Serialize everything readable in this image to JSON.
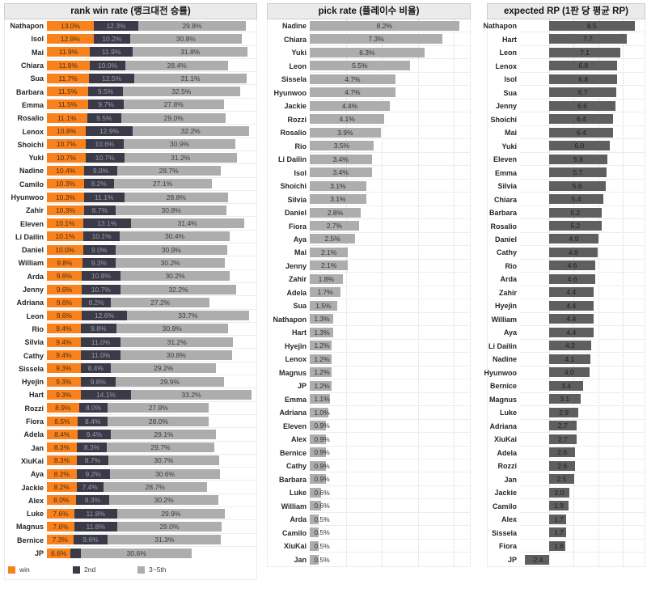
{
  "chart_data": [
    {
      "type": "bar",
      "orientation": "horizontal",
      "stacked": true,
      "title": "rank win rate (랭크대전 승률)",
      "xlim": [
        0,
        58
      ],
      "grid": false,
      "legend_position": "bottom",
      "series": [
        {
          "name": "win",
          "color": "#F9821D"
        },
        {
          "name": "2nd",
          "color": "#3B3A49"
        },
        {
          "name": "3~5th",
          "color": "#ADADAD"
        }
      ],
      "rows": [
        {
          "name": "Nathapon",
          "values": [
            13.0,
            12.3,
            29.8
          ],
          "labels": [
            "13.0%",
            "12.3%",
            "29.8%"
          ]
        },
        {
          "name": "Isol",
          "values": [
            12.9,
            10.2,
            30.8
          ],
          "labels": [
            "12.9%",
            "10.2%",
            "30.8%"
          ]
        },
        {
          "name": "Mai",
          "values": [
            11.9,
            11.9,
            31.8
          ],
          "labels": [
            "11.9%",
            "11.9%",
            "31.8%"
          ]
        },
        {
          "name": "Chiara",
          "values": [
            11.8,
            10.0,
            28.4
          ],
          "labels": [
            "11.8%",
            "10.0%",
            "28.4%"
          ]
        },
        {
          "name": "Sua",
          "values": [
            11.7,
            12.5,
            31.1
          ],
          "labels": [
            "11.7%",
            "12.5%",
            "31.1%"
          ]
        },
        {
          "name": "Barbara",
          "values": [
            11.5,
            9.5,
            32.5
          ],
          "labels": [
            "11.5%",
            "9.5%",
            "32.5%"
          ]
        },
        {
          "name": "Emma",
          "values": [
            11.5,
            9.7,
            27.8
          ],
          "labels": [
            "11.5%",
            "9.7%",
            "27.8%"
          ]
        },
        {
          "name": "Rosalio",
          "values": [
            11.1,
            9.5,
            29.0
          ],
          "labels": [
            "11.1%",
            "9.5%",
            "29.0%"
          ]
        },
        {
          "name": "Lenox",
          "values": [
            10.8,
            12.9,
            32.2
          ],
          "labels": [
            "10.8%",
            "12.9%",
            "32.2%"
          ]
        },
        {
          "name": "Shoichi",
          "values": [
            10.7,
            10.6,
            30.9
          ],
          "labels": [
            "10.7%",
            "10.6%",
            "30.9%"
          ]
        },
        {
          "name": "Yuki",
          "values": [
            10.7,
            10.7,
            31.2
          ],
          "labels": [
            "10.7%",
            "10.7%",
            "31.2%"
          ]
        },
        {
          "name": "Nadine",
          "values": [
            10.4,
            9.0,
            28.7
          ],
          "labels": [
            "10.4%",
            "9.0%",
            "28.7%"
          ]
        },
        {
          "name": "Camilo",
          "values": [
            10.3,
            8.2,
            27.1
          ],
          "labels": [
            "10.3%",
            "8.2%",
            "27.1%"
          ]
        },
        {
          "name": "Hyunwoo",
          "values": [
            10.3,
            11.1,
            28.8
          ],
          "labels": [
            "10.3%",
            "11.1%",
            "28.8%"
          ]
        },
        {
          "name": "Zahir",
          "values": [
            10.3,
            8.7,
            30.8
          ],
          "labels": [
            "10.3%",
            "8.7%",
            "30.8%"
          ]
        },
        {
          "name": "Eleven",
          "values": [
            10.1,
            13.1,
            31.4
          ],
          "labels": [
            "10.1%",
            "13.1%",
            "31.4%"
          ]
        },
        {
          "name": "Li Dailin",
          "values": [
            10.1,
            10.1,
            30.4
          ],
          "labels": [
            "10.1%",
            "10.1%",
            "30.4%"
          ]
        },
        {
          "name": "Daniel",
          "values": [
            10.0,
            9.0,
            30.9
          ],
          "labels": [
            "10.0%",
            "9.0%",
            "30.9%"
          ]
        },
        {
          "name": "William",
          "values": [
            9.8,
            9.3,
            30.2
          ],
          "labels": [
            "9.8%",
            "9.3%",
            "30.2%"
          ]
        },
        {
          "name": "Arda",
          "values": [
            9.6,
            10.8,
            30.2
          ],
          "labels": [
            "9.6%",
            "10.8%",
            "30.2%"
          ]
        },
        {
          "name": "Jenny",
          "values": [
            9.6,
            10.7,
            32.2
          ],
          "labels": [
            "9.6%",
            "10.7%",
            "32.2%"
          ]
        },
        {
          "name": "Adriana",
          "values": [
            9.6,
            8.2,
            27.2
          ],
          "labels": [
            "9.6%",
            "8.2%",
            "27.2%"
          ]
        },
        {
          "name": "Leon",
          "values": [
            9.6,
            12.6,
            33.7
          ],
          "labels": [
            "9.6%",
            "12.6%",
            "33.7%"
          ]
        },
        {
          "name": "Rio",
          "values": [
            9.4,
            9.8,
            30.9
          ],
          "labels": [
            "9.4%",
            "9.8%",
            "30.9%"
          ]
        },
        {
          "name": "Silvia",
          "values": [
            9.4,
            11.0,
            31.2
          ],
          "labels": [
            "9.4%",
            "11.0%",
            "31.2%"
          ]
        },
        {
          "name": "Cathy",
          "values": [
            9.4,
            11.0,
            30.8
          ],
          "labels": [
            "9.4%",
            "11.0%",
            "30.8%"
          ]
        },
        {
          "name": "Sissela",
          "values": [
            9.3,
            8.4,
            29.2
          ],
          "labels": [
            "9.3%",
            "8.4%",
            "29.2%"
          ]
        },
        {
          "name": "Hyejin",
          "values": [
            9.3,
            9.8,
            29.9
          ],
          "labels": [
            "9.3%",
            "9.8%",
            "29.9%"
          ]
        },
        {
          "name": "Hart",
          "values": [
            9.3,
            14.1,
            33.2
          ],
          "labels": [
            "9.3%",
            "14.1%",
            "33.2%"
          ]
        },
        {
          "name": "Rozzi",
          "values": [
            8.9,
            8.0,
            27.9
          ],
          "labels": [
            "8.9%",
            "8.0%",
            "27.9%"
          ]
        },
        {
          "name": "Fiora",
          "values": [
            8.5,
            8.4,
            28.0
          ],
          "labels": [
            "8.5%",
            "8.4%",
            "28.0%"
          ]
        },
        {
          "name": "Adela",
          "values": [
            8.4,
            9.4,
            29.1
          ],
          "labels": [
            "8.4%",
            "9.4%",
            "29.1%"
          ]
        },
        {
          "name": "Jan",
          "values": [
            8.3,
            8.3,
            29.7
          ],
          "labels": [
            "8.3%",
            "8.3%",
            "29.7%"
          ]
        },
        {
          "name": "XiuKai",
          "values": [
            8.3,
            8.7,
            30.7
          ],
          "labels": [
            "8.3%",
            "8.7%",
            "30.7%"
          ]
        },
        {
          "name": "Aya",
          "values": [
            8.2,
            9.2,
            30.6
          ],
          "labels": [
            "8.2%",
            "9.2%",
            "30.6%"
          ]
        },
        {
          "name": "Jackie",
          "values": [
            8.2,
            7.4,
            28.7
          ],
          "labels": [
            "8.2%",
            "7.4%",
            "28.7%"
          ]
        },
        {
          "name": "Alex",
          "values": [
            8.0,
            9.3,
            30.2
          ],
          "labels": [
            "8.0%",
            "9.3%",
            "30.2%"
          ]
        },
        {
          "name": "Luke",
          "values": [
            7.6,
            11.8,
            29.9
          ],
          "labels": [
            "7.6%",
            "11.8%",
            "29.9%"
          ]
        },
        {
          "name": "Magnus",
          "values": [
            7.6,
            11.8,
            29.0
          ],
          "labels": [
            "7.6%",
            "11.8%",
            "29.0%"
          ]
        },
        {
          "name": "Bernice",
          "values": [
            7.3,
            9.6,
            31.3
          ],
          "labels": [
            "7.3%",
            "9.6%",
            "31.3%"
          ]
        },
        {
          "name": "JP",
          "values": [
            6.6,
            2.9,
            30.6
          ],
          "labels": [
            "6.6%",
            "",
            "30.6%"
          ]
        }
      ]
    },
    {
      "type": "bar",
      "orientation": "horizontal",
      "title": "pick rate (플레이수 비율)",
      "color": "#ADADAD",
      "xlim": [
        0,
        8.8
      ],
      "gridlines": [
        2,
        4,
        6,
        8
      ],
      "rows": [
        {
          "name": "Nadine",
          "value": 8.2,
          "label": "8.2%"
        },
        {
          "name": "Chiara",
          "value": 7.3,
          "label": "7.3%"
        },
        {
          "name": "Yuki",
          "value": 6.3,
          "label": "6.3%"
        },
        {
          "name": "Leon",
          "value": 5.5,
          "label": "5.5%"
        },
        {
          "name": "Sissela",
          "value": 4.7,
          "label": "4.7%"
        },
        {
          "name": "Hyunwoo",
          "value": 4.7,
          "label": "4.7%"
        },
        {
          "name": "Jackie",
          "value": 4.4,
          "label": "4.4%"
        },
        {
          "name": "Rozzi",
          "value": 4.1,
          "label": "4.1%"
        },
        {
          "name": "Rosalio",
          "value": 3.9,
          "label": "3.9%"
        },
        {
          "name": "Rio",
          "value": 3.5,
          "label": "3.5%"
        },
        {
          "name": "Li Dailin",
          "value": 3.4,
          "label": "3.4%"
        },
        {
          "name": "Isol",
          "value": 3.4,
          "label": "3.4%"
        },
        {
          "name": "Shoichi",
          "value": 3.1,
          "label": "3.1%"
        },
        {
          "name": "Silvia",
          "value": 3.1,
          "label": "3.1%"
        },
        {
          "name": "Daniel",
          "value": 2.8,
          "label": "2.8%"
        },
        {
          "name": "Fiora",
          "value": 2.7,
          "label": "2.7%"
        },
        {
          "name": "Aya",
          "value": 2.5,
          "label": "2.5%"
        },
        {
          "name": "Mai",
          "value": 2.1,
          "label": "2.1%"
        },
        {
          "name": "Jenny",
          "value": 2.1,
          "label": "2.1%"
        },
        {
          "name": "Zahir",
          "value": 1.8,
          "label": "1.8%"
        },
        {
          "name": "Adela",
          "value": 1.7,
          "label": "1.7%"
        },
        {
          "name": "Sua",
          "value": 1.5,
          "label": "1.5%"
        },
        {
          "name": "Nathapon",
          "value": 1.3,
          "label": "1.3%"
        },
        {
          "name": "Hart",
          "value": 1.3,
          "label": "1.3%"
        },
        {
          "name": "Hyejin",
          "value": 1.2,
          "label": "1.2%"
        },
        {
          "name": "Lenox",
          "value": 1.2,
          "label": "1.2%"
        },
        {
          "name": "Magnus",
          "value": 1.2,
          "label": "1.2%"
        },
        {
          "name": "JP",
          "value": 1.2,
          "label": "1.2%"
        },
        {
          "name": "Emma",
          "value": 1.1,
          "label": "1.1%"
        },
        {
          "name": "Adriana",
          "value": 1.0,
          "label": "1.0%"
        },
        {
          "name": "Eleven",
          "value": 0.9,
          "label": "0.9%"
        },
        {
          "name": "Alex",
          "value": 0.9,
          "label": "0.9%"
        },
        {
          "name": "Bernice",
          "value": 0.9,
          "label": "0.9%"
        },
        {
          "name": "Cathy",
          "value": 0.9,
          "label": "0.9%"
        },
        {
          "name": "Barbara",
          "value": 0.9,
          "label": "0.9%"
        },
        {
          "name": "Luke",
          "value": 0.6,
          "label": "0.6%"
        },
        {
          "name": "William",
          "value": 0.6,
          "label": "0.6%"
        },
        {
          "name": "Arda",
          "value": 0.5,
          "label": "0.5%"
        },
        {
          "name": "Camilo",
          "value": 0.5,
          "label": "0.5%"
        },
        {
          "name": "XiuKai",
          "value": 0.5,
          "label": "0.5%"
        },
        {
          "name": "Jan",
          "value": 0.5,
          "label": "0.5%"
        }
      ]
    },
    {
      "type": "bar",
      "orientation": "horizontal",
      "title": "expected RP (1판 당 평균 RP)",
      "color": "#5F5F5F",
      "xlim": [
        -2.9,
        9.5
      ],
      "gridlines": [
        0,
        2.5,
        5,
        7.5
      ],
      "rows": [
        {
          "name": "Nathapon",
          "value": 8.5,
          "label": "8.5"
        },
        {
          "name": "Hart",
          "value": 7.7,
          "label": "7.7"
        },
        {
          "name": "Leon",
          "value": 7.1,
          "label": "7.1"
        },
        {
          "name": "Lenox",
          "value": 6.8,
          "label": "6.8"
        },
        {
          "name": "Isol",
          "value": 6.8,
          "label": "6.8"
        },
        {
          "name": "Sua",
          "value": 6.7,
          "label": "6.7"
        },
        {
          "name": "Jenny",
          "value": 6.6,
          "label": "6.6"
        },
        {
          "name": "Shoichi",
          "value": 6.4,
          "label": "6.4"
        },
        {
          "name": "Mai",
          "value": 6.4,
          "label": "6.4"
        },
        {
          "name": "Yuki",
          "value": 6.0,
          "label": "6.0"
        },
        {
          "name": "Eleven",
          "value": 5.8,
          "label": "5.8"
        },
        {
          "name": "Emma",
          "value": 5.7,
          "label": "5.7"
        },
        {
          "name": "Silvia",
          "value": 5.6,
          "label": "5.6"
        },
        {
          "name": "Chiara",
          "value": 5.4,
          "label": "5.4"
        },
        {
          "name": "Barbara",
          "value": 5.2,
          "label": "5.2"
        },
        {
          "name": "Rosalio",
          "value": 5.2,
          "label": "5.2"
        },
        {
          "name": "Daniel",
          "value": 4.9,
          "label": "4.9"
        },
        {
          "name": "Cathy",
          "value": 4.8,
          "label": "4.8"
        },
        {
          "name": "Rio",
          "value": 4.6,
          "label": "4.6"
        },
        {
          "name": "Arda",
          "value": 4.6,
          "label": "4.6"
        },
        {
          "name": "Zahir",
          "value": 4.4,
          "label": "4.4"
        },
        {
          "name": "Hyejin",
          "value": 4.4,
          "label": "4.4"
        },
        {
          "name": "William",
          "value": 4.4,
          "label": "4.4"
        },
        {
          "name": "Aya",
          "value": 4.4,
          "label": "4.4"
        },
        {
          "name": "Li Dailin",
          "value": 4.2,
          "label": "4.2"
        },
        {
          "name": "Nadine",
          "value": 4.1,
          "label": "4.1"
        },
        {
          "name": "Hyunwoo",
          "value": 4.0,
          "label": "4.0"
        },
        {
          "name": "Bernice",
          "value": 3.4,
          "label": "3.4"
        },
        {
          "name": "Magnus",
          "value": 3.1,
          "label": "3.1"
        },
        {
          "name": "Luke",
          "value": 2.9,
          "label": "2.9"
        },
        {
          "name": "Adriana",
          "value": 2.7,
          "label": "2.7"
        },
        {
          "name": "XiuKai",
          "value": 2.7,
          "label": "2.7"
        },
        {
          "name": "Adela",
          "value": 2.6,
          "label": "2.6"
        },
        {
          "name": "Rozzi",
          "value": 2.6,
          "label": "2.6"
        },
        {
          "name": "Jan",
          "value": 2.5,
          "label": "2.5"
        },
        {
          "name": "Jackie",
          "value": 2.0,
          "label": "2.0"
        },
        {
          "name": "Camilo",
          "value": 1.9,
          "label": "1.9"
        },
        {
          "name": "Alex",
          "value": 1.7,
          "label": "1.7"
        },
        {
          "name": "Sissela",
          "value": 1.7,
          "label": "1.7"
        },
        {
          "name": "Fiora",
          "value": 1.6,
          "label": "1.6"
        },
        {
          "name": "JP",
          "value": -2.4,
          "label": "-2.4"
        }
      ]
    }
  ]
}
